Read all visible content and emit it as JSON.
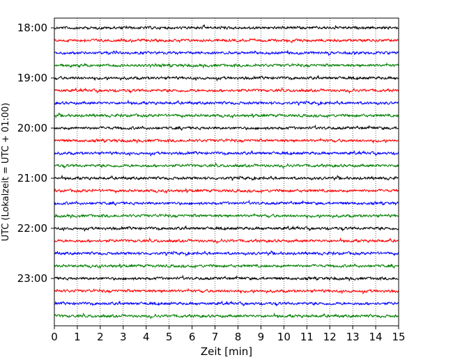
{
  "chart_data": {
    "type": "line",
    "title": "",
    "xlabel": "Zeit  [min]",
    "ylabel": "UTC (Lokalzeit = UTC + 01:00)",
    "xlim": [
      0,
      15
    ],
    "x_ticks": [
      "0",
      "1",
      "2",
      "3",
      "4",
      "5",
      "6",
      "7",
      "8",
      "9",
      "10",
      "11",
      "12",
      "13",
      "14",
      "15"
    ],
    "y_ticks": [
      "18:00",
      "19:00",
      "20:00",
      "21:00",
      "22:00",
      "23:00"
    ],
    "grid": "vertical dotted",
    "trace_interval_minutes": 15,
    "trace_start": "18:00",
    "trace_count": 24,
    "trace_colors": [
      "#000000",
      "#ff0000",
      "#0000ff",
      "#008000"
    ]
  }
}
